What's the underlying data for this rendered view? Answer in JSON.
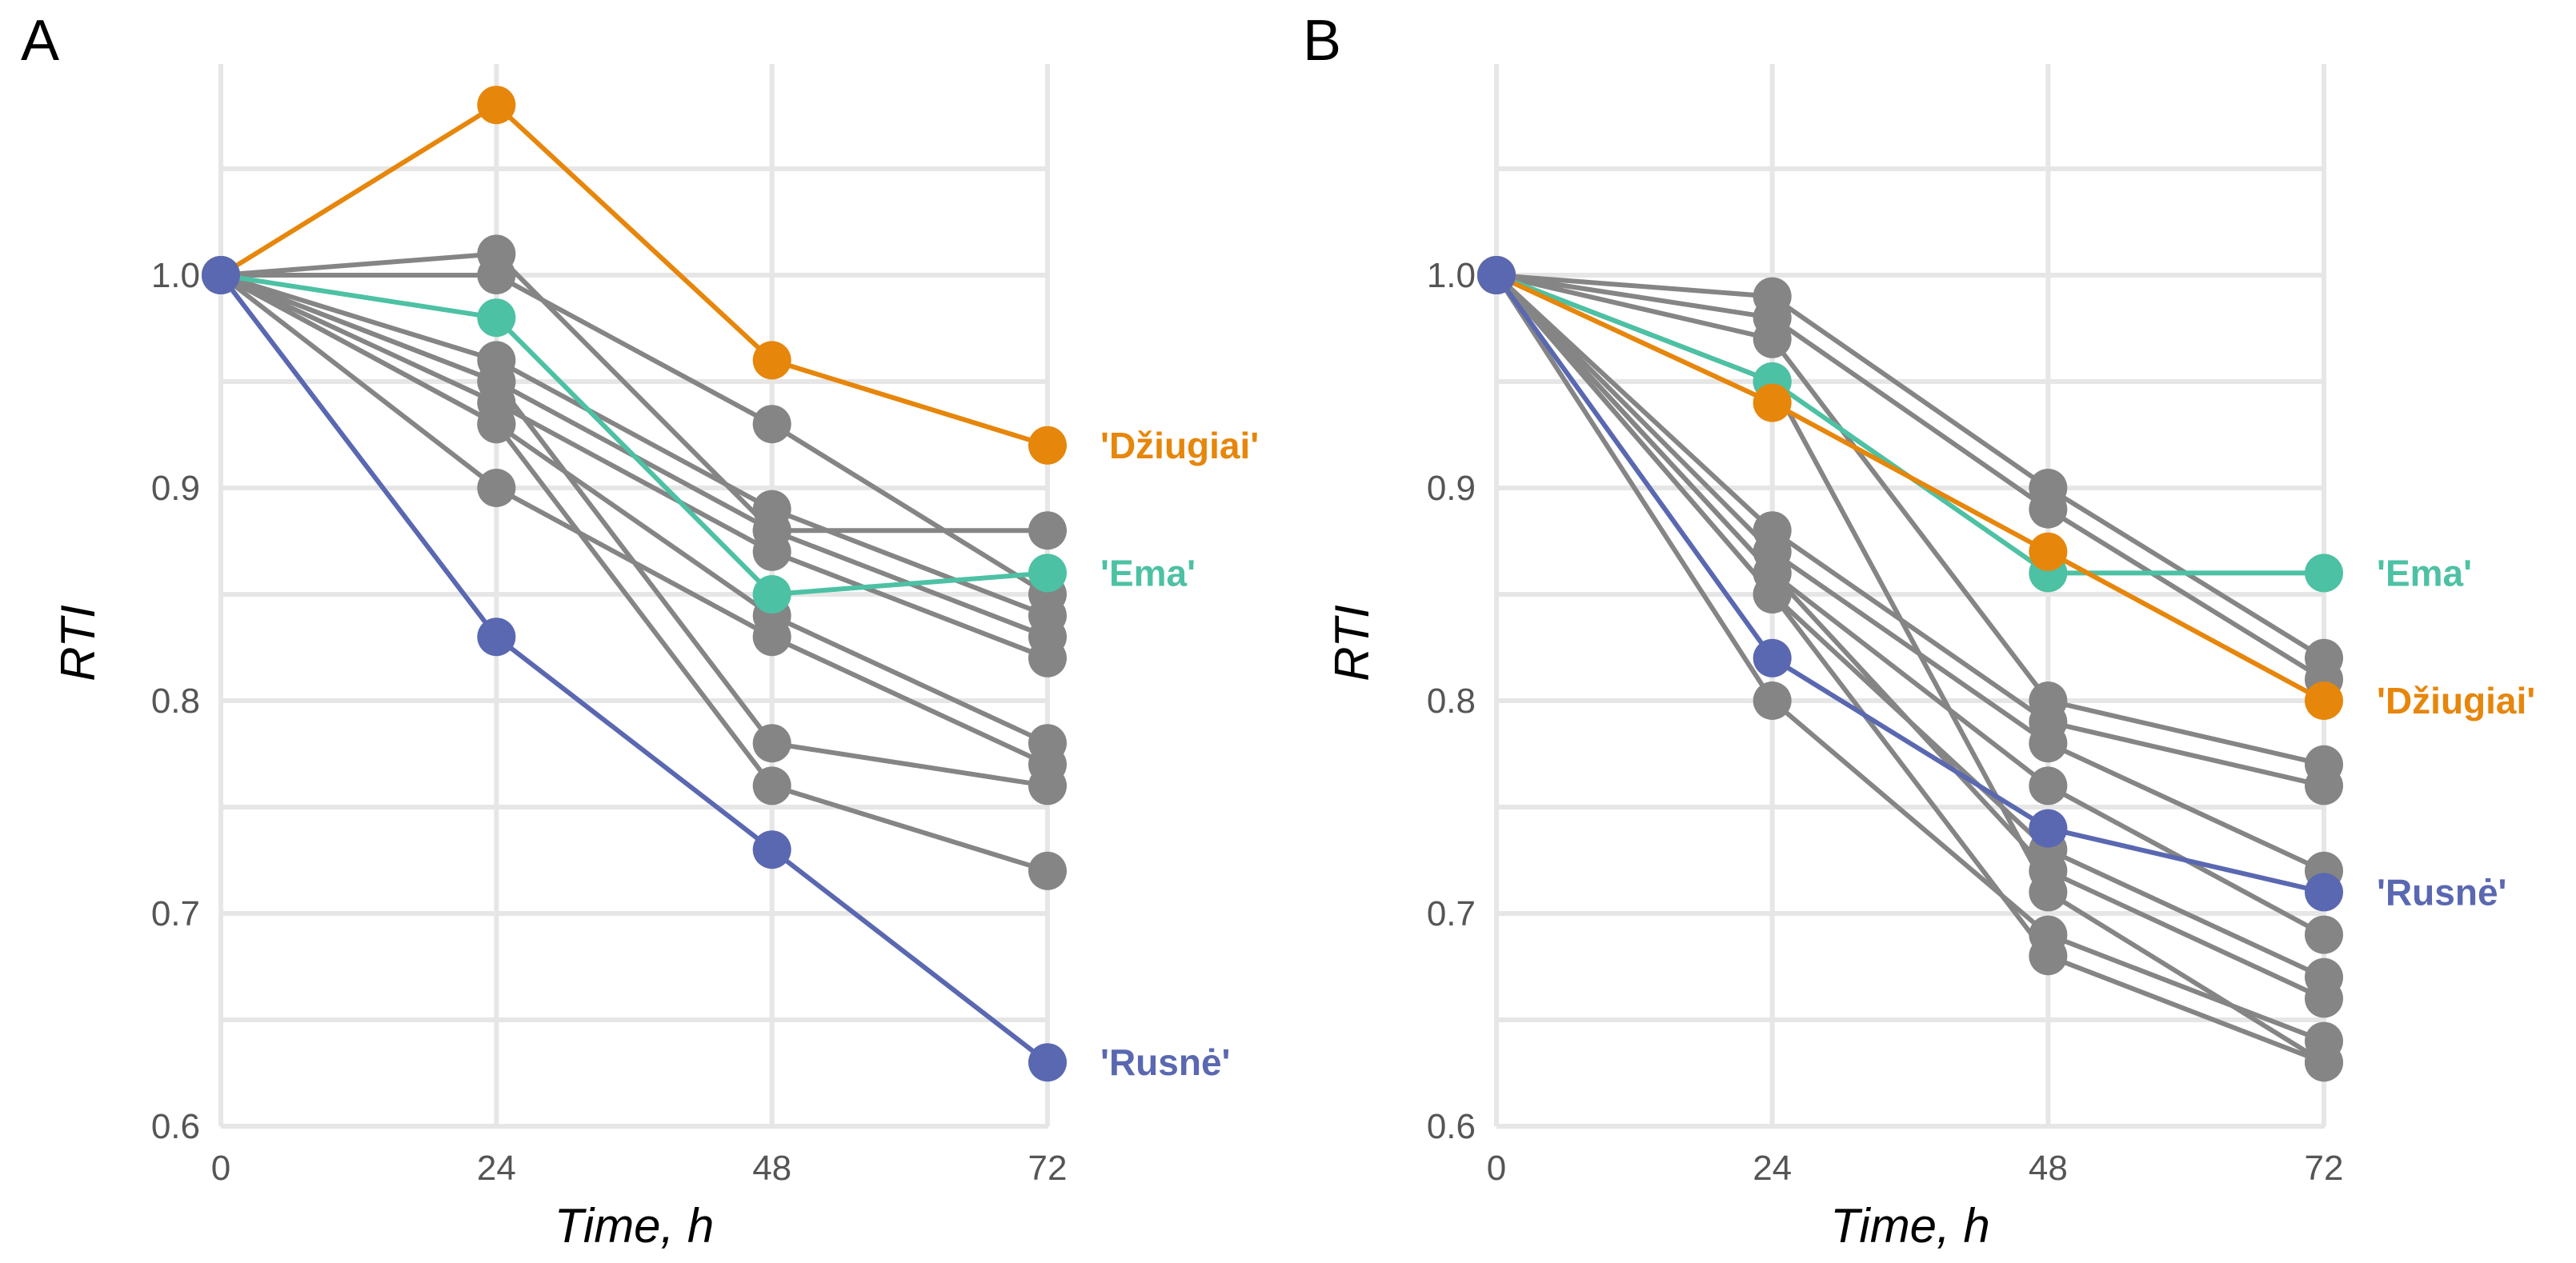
{
  "chart_data": [
    {
      "type": "line",
      "panel": "A",
      "xlabel": "Time, h",
      "ylabel": "RTI",
      "x": [
        0,
        24,
        48,
        72
      ],
      "xticks": [
        "0",
        "24",
        "48",
        "72"
      ],
      "yticks": [
        "0.6",
        "0.7",
        "0.8",
        "0.9",
        "1.0"
      ],
      "ylim": [
        0.6,
        1.1
      ],
      "grid": true,
      "gray_color": "#858585",
      "series": [
        {
          "values": [
            1.0,
            1.01,
            0.88,
            0.88
          ]
        },
        {
          "values": [
            1.0,
            1.0,
            0.93,
            0.85
          ]
        },
        {
          "values": [
            1.0,
            0.96,
            0.89,
            0.84
          ]
        },
        {
          "values": [
            1.0,
            0.95,
            0.88,
            0.83
          ]
        },
        {
          "values": [
            1.0,
            0.94,
            0.87,
            0.82
          ]
        },
        {
          "values": [
            1.0,
            0.93,
            0.84,
            0.78
          ]
        },
        {
          "values": [
            1.0,
            0.9,
            0.83,
            0.77
          ]
        },
        {
          "values": [
            1.0,
            0.95,
            0.78,
            0.76
          ]
        },
        {
          "values": [
            1.0,
            0.93,
            0.76,
            0.72
          ]
        }
      ],
      "highlights": [
        {
          "name": "'Džiugiai'",
          "color": "#E6860B",
          "values": [
            1.0,
            1.08,
            0.96,
            0.92
          ]
        },
        {
          "name": "'Ema'",
          "color": "#4DC1A3",
          "values": [
            1.0,
            0.98,
            0.85,
            0.86
          ]
        },
        {
          "name": "'Rusnė'",
          "color": "#5A68B1",
          "values": [
            1.0,
            0.83,
            0.73,
            0.63
          ]
        }
      ]
    },
    {
      "type": "line",
      "panel": "B",
      "xlabel": "Time, h",
      "ylabel": "RTI",
      "x": [
        0,
        24,
        48,
        72
      ],
      "xticks": [
        "0",
        "24",
        "48",
        "72"
      ],
      "yticks": [
        "0.6",
        "0.7",
        "0.8",
        "0.9",
        "1.0"
      ],
      "ylim": [
        0.6,
        1.1
      ],
      "grid": true,
      "gray_color": "#858585",
      "series": [
        {
          "values": [
            1.0,
            0.99,
            0.9,
            0.82
          ]
        },
        {
          "values": [
            1.0,
            0.98,
            0.89,
            0.81
          ]
        },
        {
          "values": [
            1.0,
            0.97,
            0.8,
            0.77
          ]
        },
        {
          "values": [
            1.0,
            0.88,
            0.79,
            0.76
          ]
        },
        {
          "values": [
            1.0,
            0.87,
            0.78,
            0.72
          ]
        },
        {
          "values": [
            1.0,
            0.86,
            0.76,
            0.69
          ]
        },
        {
          "values": [
            1.0,
            0.85,
            0.73,
            0.67
          ]
        },
        {
          "values": [
            1.0,
            0.86,
            0.72,
            0.66
          ]
        },
        {
          "values": [
            1.0,
            0.8,
            0.69,
            0.64
          ]
        },
        {
          "values": [
            1.0,
            0.85,
            0.68,
            0.63
          ]
        },
        {
          "values": [
            1.0,
            0.95,
            0.71,
            0.63
          ]
        }
      ],
      "highlights": [
        {
          "name": "'Ema'",
          "color": "#4DC1A3",
          "values": [
            1.0,
            0.95,
            0.86,
            0.86
          ]
        },
        {
          "name": "'Džiugiai'",
          "color": "#E6860B",
          "values": [
            1.0,
            0.94,
            0.87,
            0.8
          ]
        },
        {
          "name": "'Rusnė'",
          "color": "#5A68B1",
          "values": [
            1.0,
            0.82,
            0.74,
            0.71
          ]
        }
      ]
    }
  ]
}
